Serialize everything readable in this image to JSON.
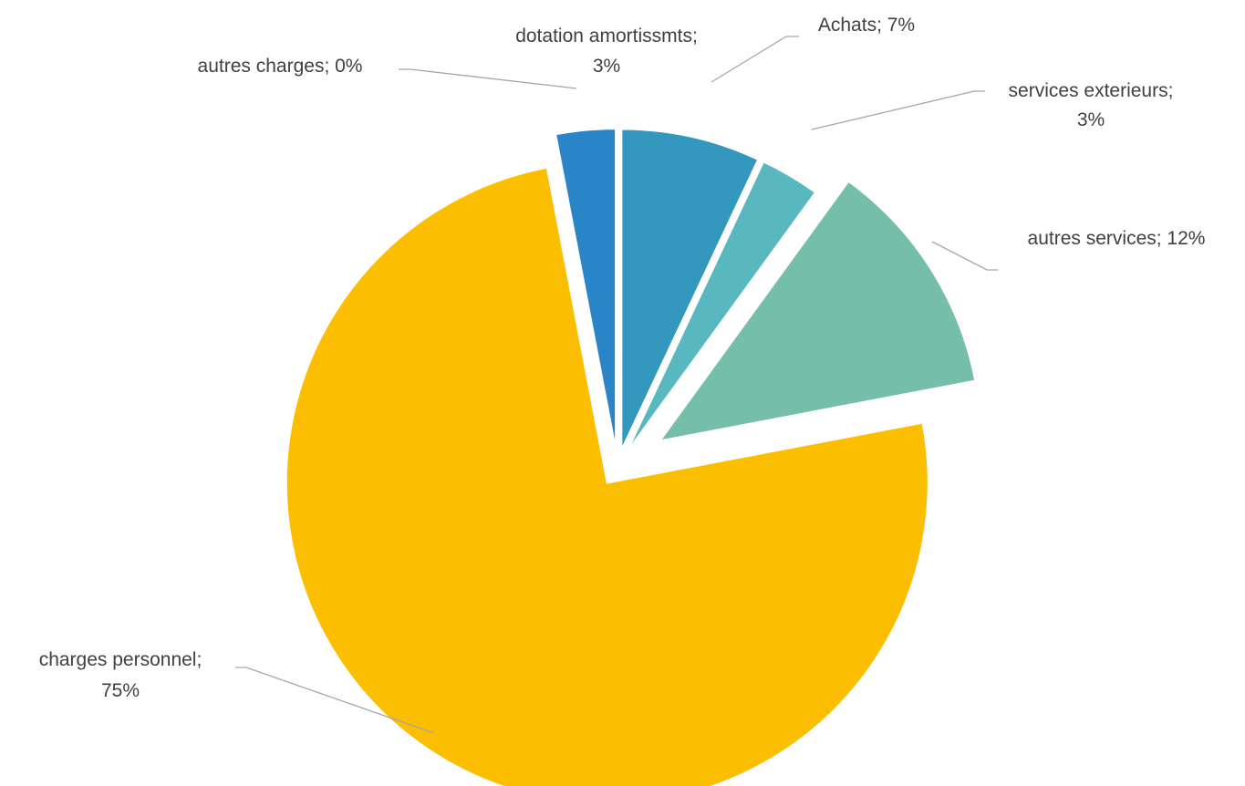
{
  "chart_data": {
    "type": "pie",
    "title": "",
    "slices": [
      {
        "label": "Achats",
        "value": 7,
        "display_value": "7%",
        "color": "#3497be"
      },
      {
        "label": "services exterieurs",
        "value": 3,
        "display_value": "3%",
        "color": "#59b7c0"
      },
      {
        "label": "autres services",
        "value": 12,
        "display_value": "12%",
        "color": "#75bea9"
      },
      {
        "label": "charges personnel",
        "value": 75,
        "display_value": "75%",
        "color": "#fcbe00"
      },
      {
        "label": "autres charges",
        "value": 0,
        "display_value": "0%",
        "color": "#6b7fa8"
      },
      {
        "label": "dotation amortissmts",
        "value": 3,
        "display_value": "3%",
        "color": "#2a84c8"
      }
    ],
    "exploded": true,
    "legend": "none",
    "data_label_format": "{label}; {value}"
  }
}
